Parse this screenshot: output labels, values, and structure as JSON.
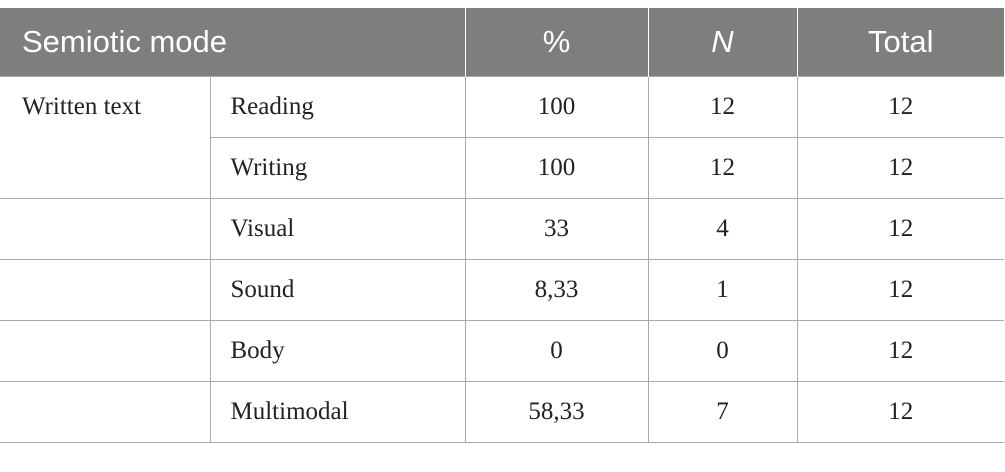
{
  "header": {
    "col1": "Semiotic mode",
    "col2": "%",
    "col3": "N",
    "col4": "Total"
  },
  "rows": [
    {
      "mode": "Written text",
      "sub": "Reading",
      "percent": "100",
      "n": "12",
      "total": "12"
    },
    {
      "mode": "",
      "sub": "Writing",
      "percent": "100",
      "n": "12",
      "total": "12"
    },
    {
      "mode": "",
      "sub": "Visual",
      "percent": "33",
      "n": "4",
      "total": "12"
    },
    {
      "mode": "",
      "sub": "Sound",
      "percent": "8,33",
      "n": "1",
      "total": "12"
    },
    {
      "mode": "",
      "sub": "Body",
      "percent": "0",
      "n": "0",
      "total": "12"
    },
    {
      "mode": "",
      "sub": "Multimodal",
      "percent": "58,33",
      "n": "7",
      "total": "12"
    }
  ]
}
